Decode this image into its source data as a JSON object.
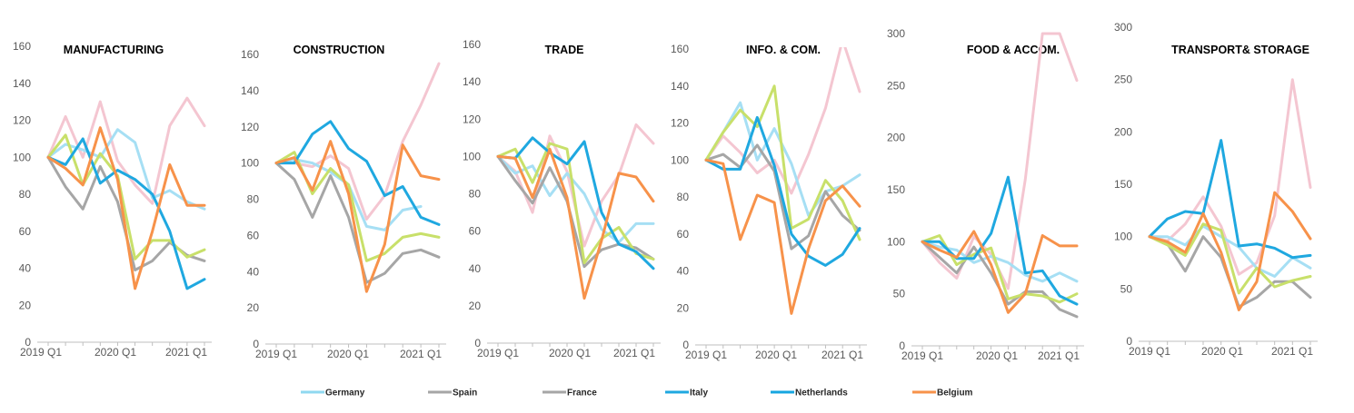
{
  "legend": [
    {
      "name": "Germany",
      "color": "#8fd8f0"
    },
    {
      "name": "Spain",
      "color": "#a6a6a6"
    },
    {
      "name": "France",
      "color": "#a6a6a6"
    },
    {
      "name": "Italy",
      "color": "#1fa8e0"
    },
    {
      "name": "Netherlands",
      "color": "#16a6e0"
    },
    {
      "name": "Belgium",
      "color": "#f7924a"
    }
  ],
  "chart_data": [
    {
      "type": "line",
      "title": "MANUFACTURING",
      "x_tick_labels": [
        "2019 Q1",
        "2020 Q1",
        "2021 Q1"
      ],
      "x": [
        "2019 Q1",
        "2019 Q2",
        "2019 Q3",
        "2019 Q4",
        "2020 Q1",
        "2020 Q2",
        "2020 Q3",
        "2020 Q4",
        "2021 Q1",
        "2021 Q2"
      ],
      "ylim": [
        0,
        160
      ],
      "yticks": [
        0,
        20,
        40,
        60,
        80,
        100,
        120,
        140,
        160
      ],
      "series": [
        {
          "color": "#f4c6d1",
          "values": [
            100,
            122,
            100,
            130,
            98,
            85,
            75,
            117,
            132,
            117
          ]
        },
        {
          "color": "#a6dff4",
          "values": [
            100,
            107,
            104,
            100,
            115,
            108,
            78,
            82,
            76,
            72
          ]
        },
        {
          "color": "#a6a6a6",
          "values": [
            100,
            84,
            72,
            95,
            76,
            39,
            44,
            54,
            47,
            44
          ]
        },
        {
          "color": "#c8e06a",
          "values": [
            100,
            112,
            85,
            102,
            90,
            45,
            55,
            55,
            46,
            50
          ]
        },
        {
          "color": "#1fa8e0",
          "values": [
            100,
            96,
            110,
            86,
            93,
            88,
            80,
            60,
            29,
            34
          ]
        },
        {
          "color": "#f7924a",
          "values": [
            100,
            94,
            85,
            116,
            88,
            29,
            60,
            96,
            74,
            74
          ]
        }
      ]
    },
    {
      "type": "line",
      "title": "CONSTRUCTION",
      "x_tick_labels": [
        "2019 Q1",
        "2020 Q1",
        "2021 Q1"
      ],
      "x": [
        "2019 Q1",
        "2019 Q2",
        "2019 Q3",
        "2019 Q4",
        "2020 Q1",
        "2020 Q2",
        "2020 Q3",
        "2020 Q4",
        "2021 Q1",
        "2021 Q2"
      ],
      "ylim": [
        0,
        160
      ],
      "yticks": [
        0,
        20,
        40,
        60,
        80,
        100,
        120,
        140,
        160
      ],
      "series": [
        {
          "color": "#f4c6d1",
          "values": [
            100,
            100,
            98,
            104,
            97,
            69,
            82,
            112,
            132,
            155
          ]
        },
        {
          "color": "#a6dff4",
          "values": [
            100,
            102,
            100,
            95,
            88,
            65,
            63,
            74,
            76,
            null
          ]
        },
        {
          "color": "#a6a6a6",
          "values": [
            100,
            91,
            70,
            93,
            70,
            34,
            39,
            50,
            52,
            48
          ]
        },
        {
          "color": "#c8e06a",
          "values": [
            100,
            106,
            83,
            97,
            88,
            46,
            50,
            59,
            61,
            59
          ]
        },
        {
          "color": "#1fa8e0",
          "values": [
            100,
            100,
            116,
            123,
            108,
            101,
            82,
            87,
            70,
            66
          ]
        },
        {
          "color": "#f7924a",
          "values": [
            100,
            103,
            85,
            112,
            83,
            29,
            55,
            110,
            93,
            91
          ]
        }
      ]
    },
    {
      "type": "line",
      "title": "TRADE",
      "x_tick_labels": [
        "2019 Q1",
        "2020 Q1",
        "2021 Q1"
      ],
      "x": [
        "2019 Q1",
        "2019 Q2",
        "2019 Q3",
        "2019 Q4",
        "2020 Q1",
        "2020 Q2",
        "2020 Q3",
        "2020 Q4",
        "2021 Q1",
        "2021 Q2"
      ],
      "ylim": [
        0,
        160
      ],
      "yticks": [
        0,
        20,
        40,
        60,
        80,
        100,
        120,
        140,
        160
      ],
      "series": [
        {
          "color": "#f4c6d1",
          "values": [
            100,
            92,
            70,
            111,
            92,
            52,
            76,
            90,
            117,
            107
          ]
        },
        {
          "color": "#a6dff4",
          "values": [
            100,
            91,
            95,
            79,
            91,
            80,
            61,
            54,
            64,
            64
          ]
        },
        {
          "color": "#a6a6a6",
          "values": [
            100,
            87,
            75,
            94,
            76,
            41,
            50,
            53,
            51,
            45
          ]
        },
        {
          "color": "#c8e06a",
          "values": [
            100,
            104,
            86,
            107,
            104,
            43,
            56,
            62,
            48,
            45
          ]
        },
        {
          "color": "#1fa8e0",
          "values": [
            100,
            99,
            110,
            102,
            96,
            108,
            70,
            53,
            49,
            40
          ]
        },
        {
          "color": "#f7924a",
          "values": [
            100,
            99,
            78,
            104,
            78,
            24,
            55,
            91,
            89,
            76
          ]
        }
      ]
    },
    {
      "type": "line",
      "title": "INFO. & COM.",
      "x_tick_labels": [
        "2019 Q1",
        "2020 Q1",
        "2021 Q1"
      ],
      "x": [
        "2019 Q1",
        "2019 Q2",
        "2019 Q3",
        "2019 Q4",
        "2020 Q1",
        "2020 Q2",
        "2020 Q3",
        "2020 Q4",
        "2021 Q1",
        "2021 Q2"
      ],
      "ylim": [
        0,
        160
      ],
      "yticks": [
        0,
        20,
        40,
        60,
        80,
        100,
        120,
        140,
        160
      ],
      "series": [
        {
          "color": "#f4c6d1",
          "values": [
            100,
            113,
            104,
            93,
            100,
            82,
            103,
            128,
            165,
            137
          ]
        },
        {
          "color": "#a6dff4",
          "values": [
            100,
            115,
            131,
            100,
            117,
            98,
            70,
            83,
            86,
            92
          ]
        },
        {
          "color": "#a6a6a6",
          "values": [
            100,
            103,
            96,
            108,
            94,
            52,
            59,
            83,
            70,
            62
          ]
        },
        {
          "color": "#c8e06a",
          "values": [
            100,
            115,
            127,
            118,
            140,
            63,
            68,
            89,
            78,
            57
          ]
        },
        {
          "color": "#1fa8e0",
          "values": [
            100,
            95,
            95,
            123,
            97,
            60,
            48,
            43,
            49,
            63
          ]
        },
        {
          "color": "#f7924a",
          "values": [
            100,
            98,
            57,
            81,
            77,
            17,
            52,
            78,
            86,
            75
          ]
        }
      ]
    },
    {
      "type": "line",
      "title": "FOOD & ACCOM.",
      "x_tick_labels": [
        "2019 Q1",
        "2020 Q1",
        "2021 Q1"
      ],
      "x": [
        "2019 Q1",
        "2019 Q2",
        "2019 Q3",
        "2019 Q4",
        "2020 Q1",
        "2020 Q2",
        "2020 Q3",
        "2020 Q4",
        "2021 Q1",
        "2021 Q2"
      ],
      "ylim": [
        0,
        300
      ],
      "yticks": [
        0,
        50,
        100,
        150,
        200,
        250,
        300
      ],
      "series": [
        {
          "color": "#f4c6d1",
          "values": [
            100,
            80,
            65,
            105,
            88,
            55,
            160,
            300,
            300,
            255
          ]
        },
        {
          "color": "#a6dff4",
          "values": [
            100,
            95,
            92,
            80,
            86,
            80,
            68,
            62,
            70,
            62
          ]
        },
        {
          "color": "#a6a6a6",
          "values": [
            100,
            85,
            70,
            95,
            70,
            40,
            52,
            52,
            35,
            28
          ]
        },
        {
          "color": "#c8e06a",
          "values": [
            100,
            106,
            78,
            88,
            94,
            45,
            50,
            48,
            42,
            50
          ]
        },
        {
          "color": "#1fa8e0",
          "values": [
            100,
            100,
            84,
            84,
            108,
            162,
            70,
            72,
            48,
            40
          ]
        },
        {
          "color": "#f7924a",
          "values": [
            100,
            92,
            85,
            110,
            78,
            32,
            50,
            106,
            96,
            96
          ]
        }
      ]
    },
    {
      "type": "line",
      "title": "TRANSPORT& STORAGE",
      "x_tick_labels": [
        "2019 Q1",
        "2020 Q1",
        "2021 Q1"
      ],
      "x": [
        "2019 Q1",
        "2019 Q2",
        "2019 Q3",
        "2019 Q4",
        "2020 Q1",
        "2020 Q2",
        "2020 Q3",
        "2020 Q4",
        "2021 Q1",
        "2021 Q2"
      ],
      "ylim": [
        0,
        300
      ],
      "yticks": [
        0,
        50,
        100,
        150,
        200,
        250,
        300
      ],
      "series": [
        {
          "color": "#f4c6d1",
          "values": [
            100,
            96,
            112,
            138,
            110,
            64,
            75,
            120,
            250,
            147
          ]
        },
        {
          "color": "#a6dff4",
          "values": [
            100,
            100,
            92,
            110,
            100,
            90,
            70,
            62,
            80,
            70
          ]
        },
        {
          "color": "#a6a6a6",
          "values": [
            100,
            93,
            67,
            100,
            80,
            33,
            42,
            57,
            57,
            42
          ]
        },
        {
          "color": "#c8e06a",
          "values": [
            100,
            92,
            82,
            112,
            106,
            46,
            70,
            52,
            58,
            62
          ]
        },
        {
          "color": "#1fa8e0",
          "values": [
            100,
            117,
            124,
            122,
            192,
            91,
            93,
            89,
            80,
            82
          ]
        },
        {
          "color": "#f7924a",
          "values": [
            100,
            95,
            85,
            122,
            85,
            30,
            57,
            142,
            124,
            98
          ]
        }
      ]
    }
  ]
}
